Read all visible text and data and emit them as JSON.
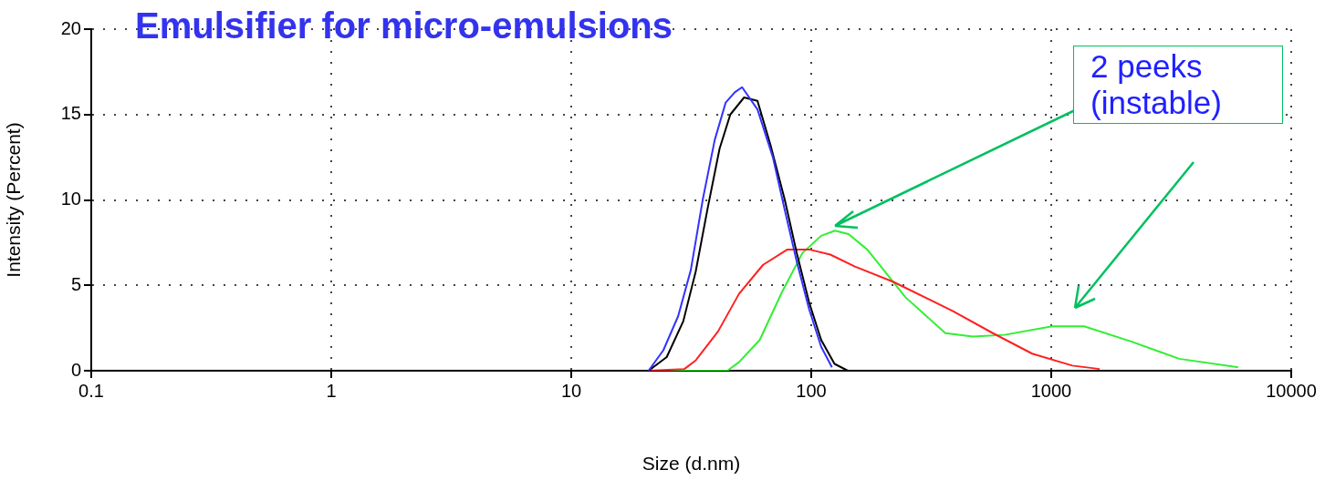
{
  "chart_data": {
    "type": "line",
    "title": "Emulsifier for micro-emulsions",
    "xlabel": "Size (d.nm)",
    "ylabel": "Intensity (Percent)",
    "annotations": [
      "2 peeks (instable)"
    ],
    "log": "x",
    "grid": true,
    "legend": false,
    "marker": "none",
    "line_style": "solid",
    "xlim": [
      0.1,
      10000
    ],
    "xticks": [
      0.1,
      1,
      10,
      100,
      1000,
      10000
    ],
    "ylim": [
      0,
      20
    ],
    "yticks": [
      0,
      5,
      10,
      15,
      20
    ],
    "series": [
      {
        "color": "#3333ff",
        "x": [
          21,
          24.2,
          27.9,
          31.5,
          35.3,
          39.6,
          44,
          48,
          51.5,
          59.7,
          69.2,
          77.6,
          87,
          98,
          110,
          122
        ],
        "values": [
          0,
          1.2,
          3.2,
          5.9,
          10,
          13.5,
          15.7,
          16.3,
          16.6,
          15.3,
          12.5,
          9.4,
          6.4,
          3.6,
          1.4,
          0.2
        ]
      },
      {
        "color": "#000000",
        "x": [
          21,
          25,
          29.3,
          33,
          37,
          41.5,
          46,
          52.5,
          59.7,
          67.7,
          77.6,
          87,
          98,
          110,
          125,
          142
        ],
        "values": [
          0,
          0.8,
          2.9,
          5.8,
          9.5,
          13,
          15,
          16,
          15.8,
          13.2,
          10,
          6.9,
          4,
          1.8,
          0.4,
          0
        ]
      },
      {
        "color": "#ff2020",
        "x": [
          21,
          29.6,
          33,
          40.9,
          50,
          63,
          79.6,
          98,
          120,
          152,
          220,
          388,
          571,
          832,
          1222,
          1591
        ],
        "values": [
          0,
          0.1,
          0.6,
          2.3,
          4.5,
          6.2,
          7.1,
          7.1,
          6.8,
          6.1,
          5.2,
          3.5,
          2.2,
          1,
          0.3,
          0.1
        ]
      },
      {
        "color": "#33ee33",
        "x": [
          21,
          44.7,
          50,
          61,
          75.5,
          92,
          110,
          125.6,
          143,
          171,
          247,
          362,
          471,
          640,
          1009,
          1371,
          2163,
          3408,
          6012
        ],
        "values": [
          0,
          0,
          0.5,
          1.8,
          4.6,
          6.9,
          7.9,
          8.2,
          8,
          7.1,
          4.3,
          2.2,
          2,
          2.1,
          2.6,
          2.6,
          1.7,
          0.7,
          0.2
        ]
      }
    ]
  }
}
